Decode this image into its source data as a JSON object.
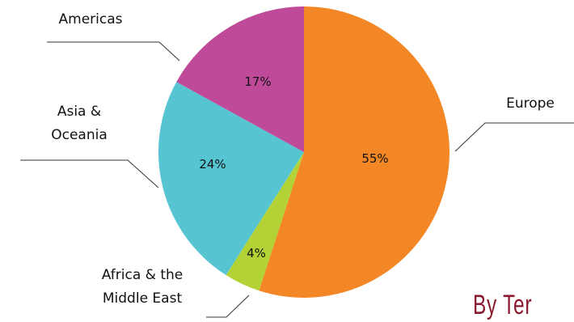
{
  "chart_data": {
    "type": "pie",
    "slices": [
      {
        "label": "Europe",
        "value": 55,
        "display": "55%",
        "color": "#f38625"
      },
      {
        "label": "Africa & the Middle East",
        "value": 4,
        "display": "4%",
        "color": "#b3d235"
      },
      {
        "label": "Asia & Oceania",
        "value": 24,
        "display": "24%",
        "color": "#56c5d1"
      },
      {
        "label": "Americas",
        "value": 17,
        "display": "17%",
        "color": "#bf4a9a"
      }
    ],
    "start": "12 o'clock",
    "direction": "clockwise",
    "labels": {
      "europe": "Europe",
      "africa_line1": "Africa & the",
      "africa_line2": "Middle East",
      "asia_line1": "Asia &",
      "asia_line2": "Oceania",
      "americas": "Americas"
    }
  },
  "footer_text": "By Ter"
}
